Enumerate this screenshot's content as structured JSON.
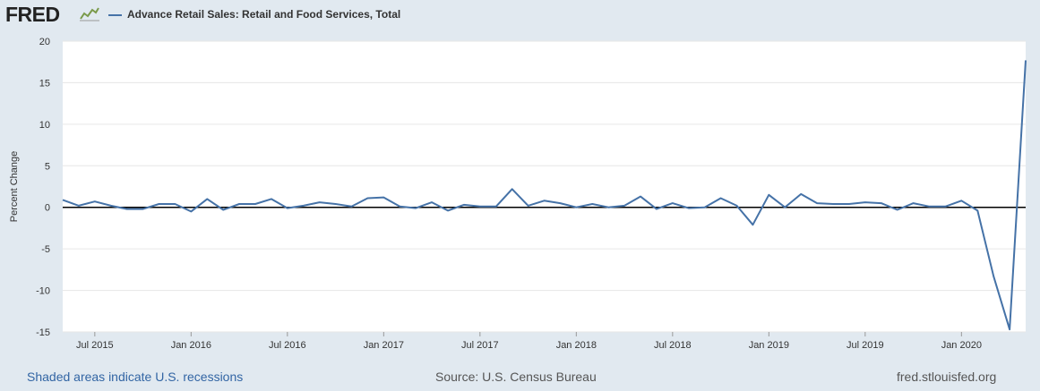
{
  "header": {
    "logo_text": "FRED",
    "series_title": "Advance Retail Sales: Retail and Food Services, Total"
  },
  "colors": {
    "series": "#4572a7",
    "background": "#e1e9f0",
    "plot_background": "#ffffff",
    "zero_line": "#000000"
  },
  "icons": {
    "logo": "fred-chart-icon"
  },
  "chart_data": {
    "type": "line",
    "title": "",
    "xlabel": "",
    "ylabel": "Percent Change",
    "ylim": [
      -15,
      20
    ],
    "yticks": [
      20,
      15,
      10,
      5,
      0,
      -5,
      -10,
      -15
    ],
    "xlim": [
      "2015-05",
      "2020-05"
    ],
    "xticks": [
      {
        "date": "2015-07",
        "label": "Jul 2015"
      },
      {
        "date": "2016-01",
        "label": "Jan 2016"
      },
      {
        "date": "2016-07",
        "label": "Jul 2016"
      },
      {
        "date": "2017-01",
        "label": "Jan 2017"
      },
      {
        "date": "2017-07",
        "label": "Jul 2017"
      },
      {
        "date": "2018-01",
        "label": "Jan 2018"
      },
      {
        "date": "2018-07",
        "label": "Jul 2018"
      },
      {
        "date": "2019-01",
        "label": "Jan 2019"
      },
      {
        "date": "2019-07",
        "label": "Jul 2019"
      },
      {
        "date": "2020-01",
        "label": "Jan 2020"
      }
    ],
    "grid": "horizontal",
    "legend": "top-left",
    "series": [
      {
        "name": "Advance Retail Sales: Retail and Food Services, Total",
        "x": [
          "2015-05",
          "2015-06",
          "2015-07",
          "2015-08",
          "2015-09",
          "2015-10",
          "2015-11",
          "2015-12",
          "2016-01",
          "2016-02",
          "2016-03",
          "2016-04",
          "2016-05",
          "2016-06",
          "2016-07",
          "2016-08",
          "2016-09",
          "2016-10",
          "2016-11",
          "2016-12",
          "2017-01",
          "2017-02",
          "2017-03",
          "2017-04",
          "2017-05",
          "2017-06",
          "2017-07",
          "2017-08",
          "2017-09",
          "2017-10",
          "2017-11",
          "2017-12",
          "2018-01",
          "2018-02",
          "2018-03",
          "2018-04",
          "2018-05",
          "2018-06",
          "2018-07",
          "2018-08",
          "2018-09",
          "2018-10",
          "2018-11",
          "2018-12",
          "2019-01",
          "2019-02",
          "2019-03",
          "2019-04",
          "2019-05",
          "2019-06",
          "2019-07",
          "2019-08",
          "2019-09",
          "2019-10",
          "2019-11",
          "2019-12",
          "2020-01",
          "2020-02",
          "2020-03",
          "2020-04",
          "2020-05"
        ],
        "values": [
          0.9,
          0.2,
          0.7,
          0.2,
          -0.2,
          -0.2,
          0.4,
          0.4,
          -0.5,
          1.0,
          -0.3,
          0.4,
          0.4,
          1.0,
          -0.1,
          0.2,
          0.6,
          0.4,
          0.1,
          1.1,
          1.2,
          0.1,
          -0.1,
          0.6,
          -0.4,
          0.3,
          0.1,
          0.1,
          2.2,
          0.2,
          0.8,
          0.5,
          0.0,
          0.4,
          0.0,
          0.2,
          1.3,
          -0.2,
          0.5,
          -0.1,
          0.0,
          1.1,
          0.2,
          -2.1,
          1.5,
          0.0,
          1.6,
          0.5,
          0.4,
          0.4,
          0.6,
          0.5,
          -0.3,
          0.5,
          0.1,
          0.1,
          0.8,
          -0.4,
          -8.3,
          -14.7,
          17.7
        ]
      }
    ]
  },
  "footer": {
    "recessions_note": "Shaded areas indicate U.S. recessions",
    "source": "Source: U.S. Census Bureau",
    "site": "fred.stlouisfed.org"
  }
}
